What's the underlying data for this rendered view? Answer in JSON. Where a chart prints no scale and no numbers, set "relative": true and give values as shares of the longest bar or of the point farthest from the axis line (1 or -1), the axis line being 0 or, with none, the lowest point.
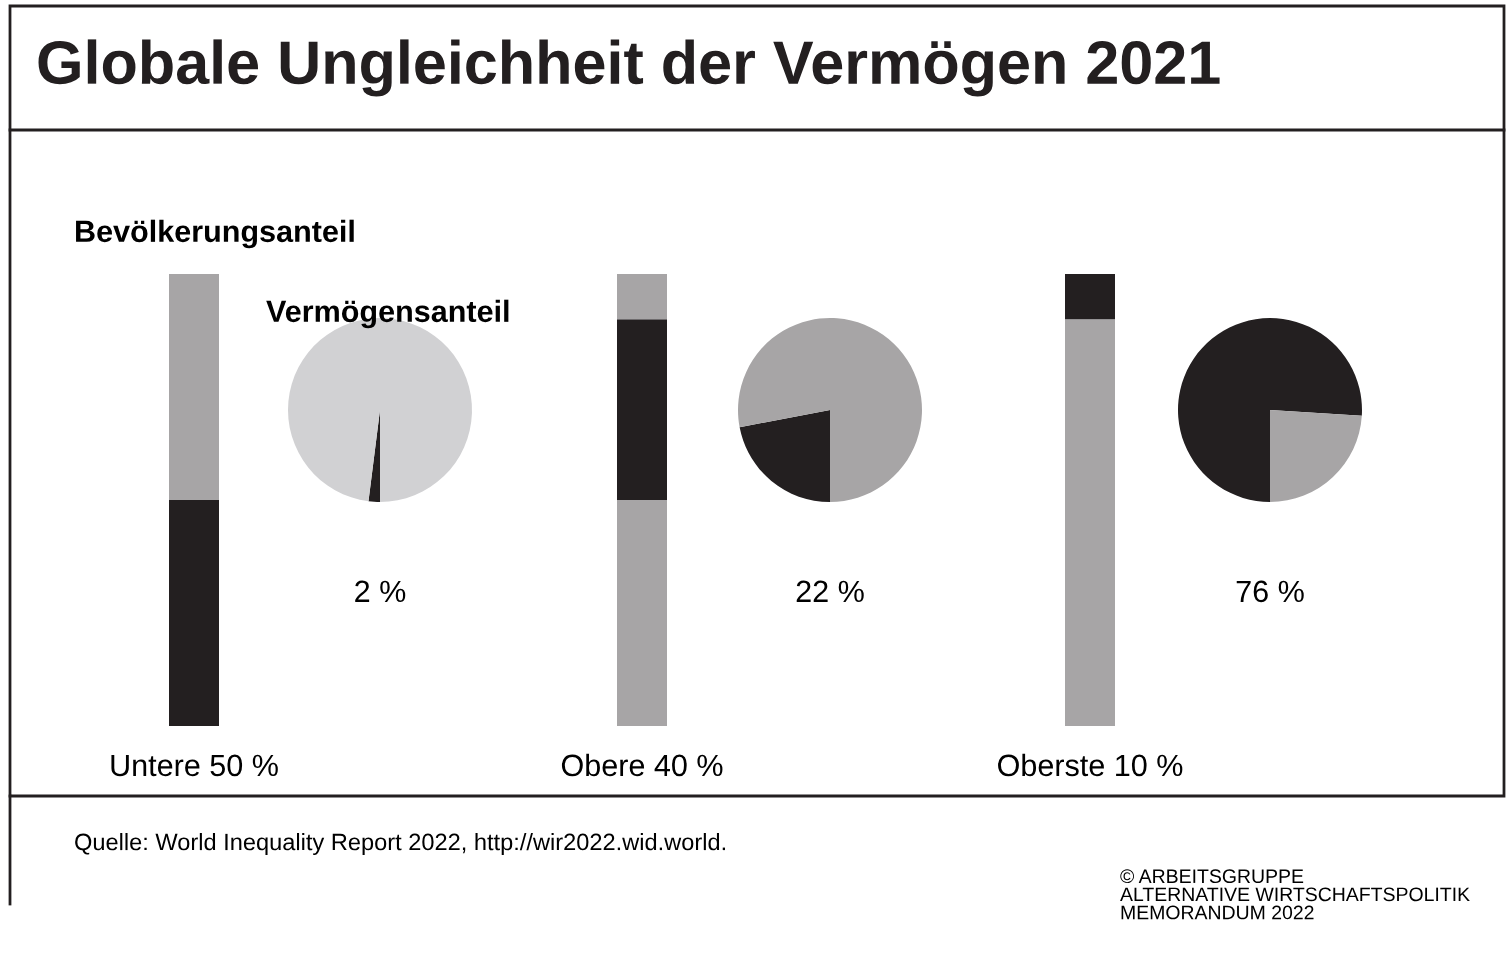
{
  "chart_data": [
    {
      "type": "bar",
      "title": "Globale Ungleichheit der Vermögen 2021",
      "subtitle": "Bevölkerungsanteil",
      "stacked": true,
      "relative": true,
      "categories": [
        "Untere 50 %",
        "Obere 40 %",
        "Oberste 10 %"
      ],
      "series": [
        {
          "colors": [
            "#231f20",
            "#a7a5a6",
            "#a7a5a6"
          ],
          "values": [
            0.5,
            0.5,
            0.9
          ]
        },
        {
          "colors": [
            "#a7a5a6",
            "#231f20",
            "#231f20"
          ],
          "values": [
            0.5,
            0.4,
            0.1
          ]
        },
        {
          "colors": [
            "#a7a5a6",
            "#a7a5a6",
            "#a7a5a6"
          ],
          "values": [
            null,
            0.1,
            null
          ]
        }
      ],
      "annotations": [
        "Quelle: World Inequality Report 2022, http://wir2022.wid.world.",
        "© ARBEITSGRUPPE\nALTERNATIVE WIRTSCHAFTSPOLITIK\nMEMORANDUM 2022"
      ]
    },
    {
      "type": "pie",
      "title": "Vermögensanteil",
      "categories": [
        null,
        null
      ],
      "values": [
        2,
        98
      ],
      "colors": [
        "#231f20",
        "#d1d1d3"
      ],
      "value_labels": [
        "2 %",
        null
      ]
    },
    {
      "type": "pie",
      "categories": [
        null,
        null
      ],
      "values": [
        22,
        78
      ],
      "colors": [
        "#231f20",
        "#a7a5a6"
      ],
      "value_labels": [
        "22 %",
        null
      ]
    },
    {
      "type": "pie",
      "categories": [
        null,
        null
      ],
      "values": [
        76,
        24
      ],
      "colors": [
        "#231f20",
        "#a7a5a6"
      ],
      "value_labels": [
        "76 %",
        null
      ]
    }
  ]
}
